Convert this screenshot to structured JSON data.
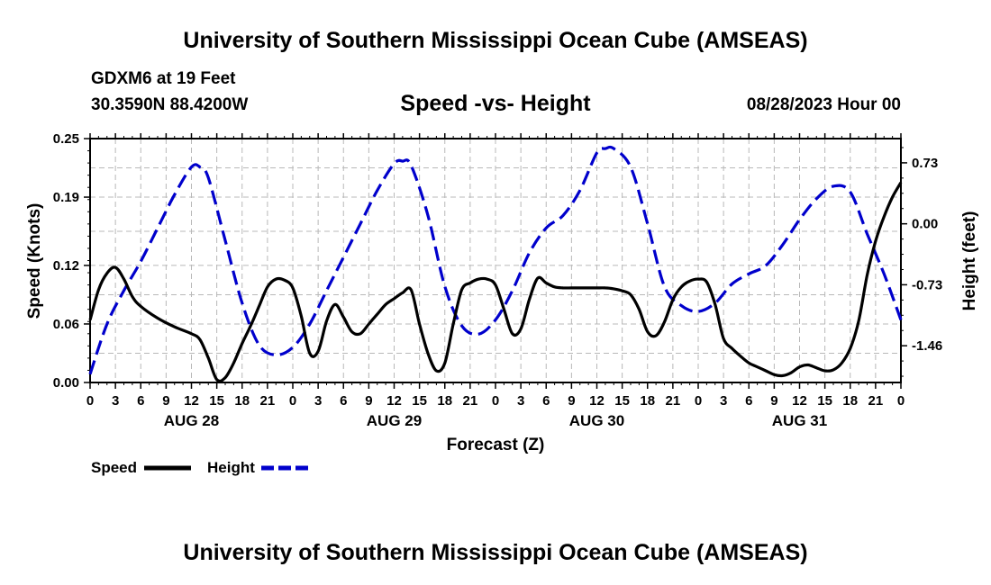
{
  "header": {
    "title": "University of Southern Mississippi Ocean Cube (AMSEAS)",
    "station": "GDXM6 at 19 Feet",
    "coords": "30.3590N  88.4200W",
    "date": "08/28/2023 Hour 00"
  },
  "footer": {
    "title": "University of Southern Mississippi Ocean Cube (AMSEAS)"
  },
  "chart_data": {
    "type": "line",
    "title": "Speed -vs- Height",
    "xlabel": "Forecast (Z)",
    "ylabel_left": "Speed (Knots)",
    "ylabel_right": "Height (feet)",
    "xlim": [
      0,
      96
    ],
    "ylim_left": [
      0,
      0.25
    ],
    "ylim_right": [
      -1.9,
      1.02
    ],
    "grid": true,
    "left_ticks": [
      "0.00",
      "0.06",
      "0.12",
      "0.19",
      "0.25"
    ],
    "right_ticks": [
      {
        "value": 0.73,
        "label": "0.73"
      },
      {
        "value": 0.0,
        "label": "0.00"
      },
      {
        "value": -0.73,
        "label": "-0.73"
      },
      {
        "value": -1.46,
        "label": "-1.46"
      }
    ],
    "x_tick_labels": [
      "0",
      "3",
      "6",
      "9",
      "12",
      "15",
      "18",
      "21",
      "0",
      "3",
      "6",
      "9",
      "12",
      "15",
      "18",
      "21",
      "0",
      "3",
      "6",
      "9",
      "12",
      "15",
      "18",
      "21",
      "0",
      "3",
      "6",
      "9",
      "12",
      "15",
      "18",
      "21",
      "0"
    ],
    "day_labels": [
      {
        "label": "AUG 28",
        "hour": 12
      },
      {
        "label": "AUG 29",
        "hour": 36
      },
      {
        "label": "AUG 30",
        "hour": 60
      },
      {
        "label": "AUG 31",
        "hour": 84
      }
    ],
    "series": [
      {
        "name": "Speed",
        "axis": "left",
        "color": "#000000",
        "style": "solid",
        "x": [
          0,
          1,
          2,
          3,
          4,
          5,
          6,
          8,
          10,
          12,
          13,
          14,
          15,
          16,
          17,
          18,
          19,
          20,
          21,
          22,
          23,
          24,
          25,
          26,
          27,
          28,
          29,
          30,
          31,
          32,
          33,
          34,
          35,
          36,
          37,
          38,
          39,
          40,
          41,
          42,
          43,
          44,
          45,
          46,
          47,
          48,
          49,
          50,
          51,
          52,
          53,
          54,
          55,
          56,
          57,
          58,
          59,
          60,
          61,
          62,
          63,
          64,
          65,
          66,
          67,
          68,
          69,
          70,
          71,
          72,
          73,
          74,
          75,
          76,
          77,
          78,
          79,
          80,
          81,
          82,
          83,
          84,
          85,
          86,
          87,
          88,
          89,
          90,
          91,
          92,
          93,
          94,
          95,
          96
        ],
        "values": [
          0.064,
          0.095,
          0.112,
          0.118,
          0.106,
          0.088,
          0.078,
          0.066,
          0.057,
          0.05,
          0.044,
          0.025,
          0.003,
          0.005,
          0.02,
          0.04,
          0.058,
          0.078,
          0.098,
          0.106,
          0.105,
          0.097,
          0.068,
          0.03,
          0.032,
          0.063,
          0.08,
          0.067,
          0.052,
          0.05,
          0.06,
          0.07,
          0.08,
          0.086,
          0.092,
          0.095,
          0.06,
          0.03,
          0.012,
          0.02,
          0.06,
          0.095,
          0.102,
          0.106,
          0.106,
          0.1,
          0.075,
          0.05,
          0.055,
          0.085,
          0.107,
          0.102,
          0.098,
          0.097,
          0.097,
          0.097,
          0.097,
          0.097,
          0.097,
          0.096,
          0.094,
          0.09,
          0.075,
          0.052,
          0.048,
          0.062,
          0.085,
          0.098,
          0.104,
          0.106,
          0.103,
          0.08,
          0.045,
          0.035,
          0.027,
          0.02,
          0.016,
          0.012,
          0.008,
          0.007,
          0.01,
          0.016,
          0.018,
          0.015,
          0.012,
          0.013,
          0.02,
          0.035,
          0.063,
          0.11,
          0.145,
          0.17,
          0.19,
          0.205
        ],
        "legend": "Speed"
      },
      {
        "name": "Height",
        "axis": "right",
        "color": "#0000cc",
        "style": "dashed",
        "x": [
          0,
          2,
          4,
          6,
          8,
          10,
          12,
          13,
          14,
          16,
          18,
          20,
          22,
          24,
          26,
          28,
          30,
          32,
          34,
          36,
          37,
          38,
          40,
          42,
          44,
          46,
          48,
          50,
          52,
          54,
          56,
          58,
          60,
          61,
          62,
          64,
          66,
          68,
          70,
          72,
          74,
          76,
          78,
          80,
          82,
          84,
          86,
          88,
          90,
          92,
          94,
          96
        ],
        "values": [
          -1.8,
          -1.2,
          -0.8,
          -0.45,
          -0.05,
          0.35,
          0.68,
          0.68,
          0.55,
          -0.2,
          -0.95,
          -1.45,
          -1.57,
          -1.48,
          -1.2,
          -0.8,
          -0.4,
          0.0,
          0.4,
          0.72,
          0.75,
          0.7,
          0.1,
          -0.75,
          -1.22,
          -1.32,
          -1.15,
          -0.8,
          -0.35,
          -0.05,
          0.1,
          0.4,
          0.85,
          0.9,
          0.9,
          0.68,
          0.0,
          -0.75,
          -0.98,
          -1.05,
          -0.95,
          -0.72,
          -0.6,
          -0.5,
          -0.25,
          0.05,
          0.3,
          0.45,
          0.38,
          -0.12,
          -0.6,
          -1.15
        ],
        "legend": "Height"
      }
    ]
  }
}
